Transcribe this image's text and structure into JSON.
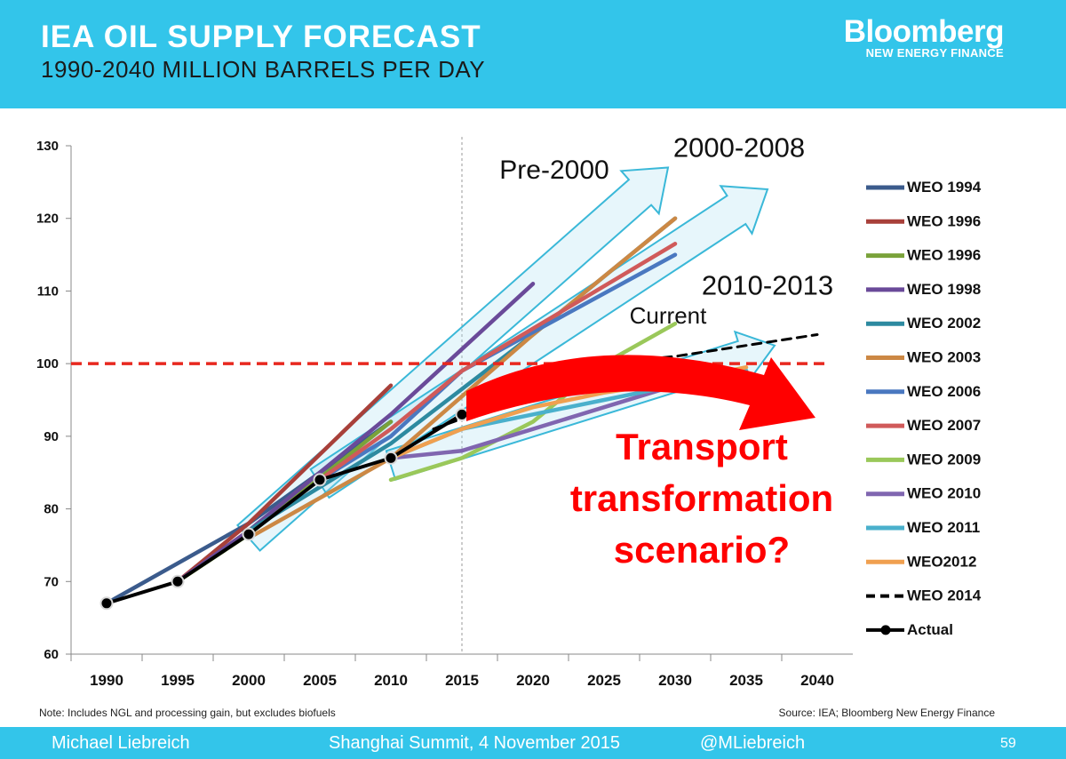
{
  "header": {
    "title": "IEA OIL SUPPLY FORECAST",
    "subtitle": "1990-2040 MILLION BARRELS PER DAY",
    "brand_name": "Bloomberg",
    "brand_sub": "NEW ENERGY FINANCE"
  },
  "notes": {
    "note": "Note: Includes NGL and processing gain, but excludes biofuels",
    "source": "Source: IEA; Bloomberg New Energy Finance"
  },
  "footer": {
    "author": "Michael Liebreich",
    "event": "Shanghai Summit, 4 November 2015",
    "handle": "@MLiebreich",
    "page": "59"
  },
  "colors": {
    "header_bg": "#33c5ea",
    "arrow_outline": "#3ab8d8",
    "threshold": "#e8281f",
    "transport": "#ff0000"
  },
  "chart_data": {
    "type": "line",
    "x_ticks": [
      1990,
      1995,
      2000,
      2005,
      2010,
      2015,
      2020,
      2025,
      2030,
      2035,
      2040
    ],
    "y_ticks": [
      60,
      70,
      80,
      90,
      100,
      110,
      120,
      130
    ],
    "xlim": [
      1987.5,
      2042.5
    ],
    "ylim": [
      60,
      130
    ],
    "legend_position": "right",
    "vertical_marker_x": 2015,
    "threshold_y": 100,
    "series": [
      {
        "name": "WEO 1994",
        "color": "#3b5b8c",
        "dash": false,
        "x": [
          1990,
          2000,
          2010
        ],
        "y": [
          67,
          78,
          92
        ]
      },
      {
        "name": "WEO 1996",
        "color": "#a8403a",
        "dash": false,
        "x": [
          1995,
          2000,
          2010
        ],
        "y": [
          70,
          78,
          97
        ]
      },
      {
        "name": "WEO 1996",
        "color": "#7aa23a",
        "dash": false,
        "x": [
          1995,
          2000,
          2010
        ],
        "y": [
          70,
          76.5,
          92
        ]
      },
      {
        "name": "WEO 1998",
        "color": "#6a4a99",
        "dash": false,
        "x": [
          1995,
          2000,
          2010,
          2020
        ],
        "y": [
          70,
          77,
          93,
          111
        ]
      },
      {
        "name": "WEO 2002",
        "color": "#2d8aa0",
        "dash": false,
        "x": [
          2000,
          2010,
          2020,
          2030
        ],
        "y": [
          77,
          89,
          104,
          120
        ]
      },
      {
        "name": "WEO 2003",
        "color": "#cc8844",
        "dash": false,
        "x": [
          2000,
          2010,
          2020,
          2030
        ],
        "y": [
          76,
          87,
          104,
          120
        ]
      },
      {
        "name": "WEO 2006",
        "color": "#4a78c0",
        "dash": false,
        "x": [
          2005,
          2010,
          2015,
          2030
        ],
        "y": [
          84,
          90,
          99,
          115
        ]
      },
      {
        "name": "WEO 2007",
        "color": "#d05a5a",
        "dash": false,
        "x": [
          2005,
          2010,
          2015,
          2030
        ],
        "y": [
          84,
          91,
          99,
          116.5
        ]
      },
      {
        "name": "WEO 2009",
        "color": "#9ac85a",
        "dash": false,
        "x": [
          2010,
          2015,
          2020,
          2025,
          2030
        ],
        "y": [
          84,
          87,
          92,
          100,
          105.5
        ]
      },
      {
        "name": "WEO 2010",
        "color": "#8066b0",
        "dash": false,
        "x": [
          2010,
          2015,
          2020,
          2025,
          2030,
          2035
        ],
        "y": [
          87,
          88,
          91,
          94,
          97,
          99
        ]
      },
      {
        "name": "WEO 2011",
        "color": "#4ab0cc",
        "dash": false,
        "x": [
          2010,
          2015,
          2020,
          2025,
          2030,
          2035
        ],
        "y": [
          87,
          91,
          93,
          95,
          97,
          99
        ]
      },
      {
        "name": "WEO2012",
        "color": "#f0a050",
        "dash": false,
        "x": [
          2010,
          2015,
          2020,
          2025,
          2030,
          2035
        ],
        "y": [
          87,
          91,
          94,
          96,
          97.5,
          99.5
        ]
      },
      {
        "name": "WEO 2014",
        "color": "#000000",
        "dash": true,
        "x": [
          2013,
          2020,
          2025,
          2030,
          2035,
          2040
        ],
        "y": [
          91,
          96,
          100,
          101,
          102.5,
          104
        ]
      }
    ],
    "actual": {
      "name": "Actual",
      "color": "#000000",
      "x": [
        1990,
        1995,
        2000,
        2005,
        2010,
        2015
      ],
      "y": [
        67,
        70,
        76.5,
        84,
        87,
        93
      ]
    },
    "annotations": [
      {
        "text": "Pre-2000",
        "x": 2021.5,
        "y": 125.5
      },
      {
        "text": "2000-2008",
        "x": 2034.5,
        "y": 128.5
      },
      {
        "text": "2010-2013",
        "x": 2036.5,
        "y": 109.5
      },
      {
        "text": "Current",
        "x": 2029.5,
        "y": 105.5
      }
    ],
    "scenario_label": [
      "Transport",
      "transformation",
      "scenario?"
    ],
    "legend": [
      "WEO 1994",
      "WEO 1996",
      "WEO 1996",
      "WEO 1998",
      "WEO 2002",
      "WEO 2003",
      "WEO 2006",
      "WEO 2007",
      "WEO 2009",
      "WEO 2010",
      "WEO 2011",
      "WEO2012",
      "WEO 2014",
      "Actual"
    ]
  }
}
